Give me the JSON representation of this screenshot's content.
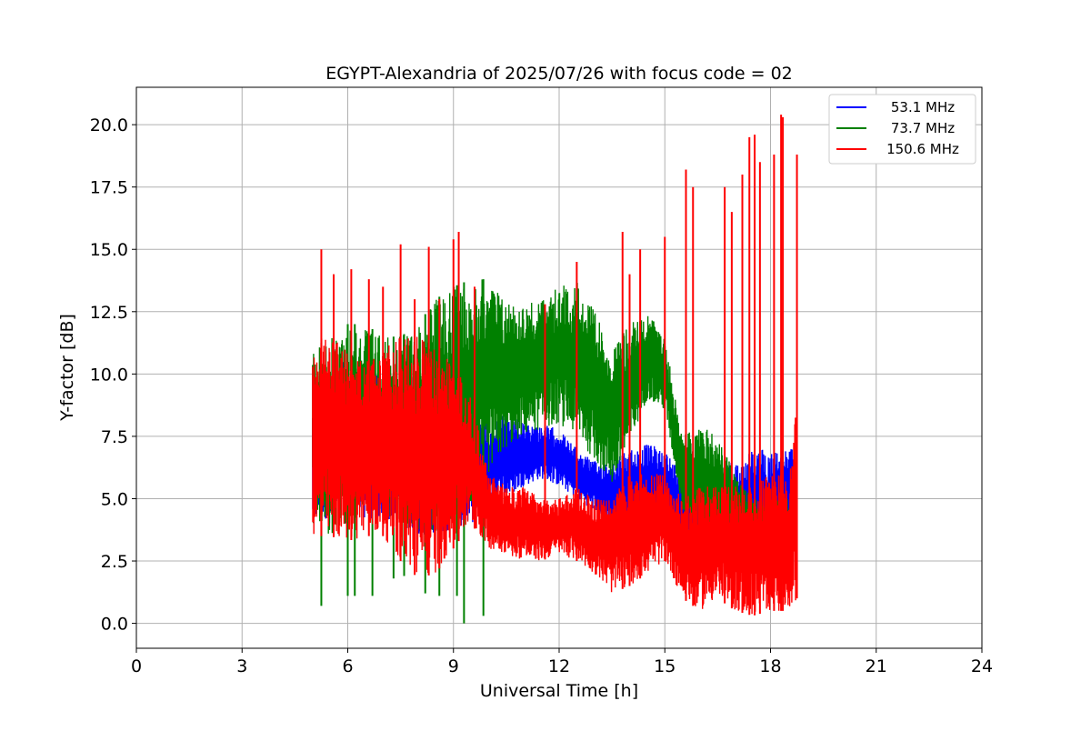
{
  "chart_data": {
    "type": "line",
    "title": "EGYPT-Alexandria of 2025/07/26 with focus code = 02",
    "xlabel": "Universal Time [h]",
    "ylabel": "Y-factor [dB]",
    "xlim": [
      0,
      24
    ],
    "ylim": [
      -1.0,
      21.5
    ],
    "x_ticks": [
      0,
      3,
      6,
      9,
      12,
      15,
      18,
      21,
      24
    ],
    "x_tick_labels": [
      "0",
      "3",
      "6",
      "9",
      "12",
      "15",
      "18",
      "21",
      "24"
    ],
    "y_ticks": [
      0,
      2.5,
      5,
      7.5,
      10,
      12.5,
      15,
      17.5,
      20
    ],
    "y_tick_labels": [
      "0.0",
      "2.5",
      "5.0",
      "7.5",
      "10.0",
      "12.5",
      "15.0",
      "17.5",
      "20.0"
    ],
    "grid": true,
    "legend_position": "top-right",
    "series": [
      {
        "name": "53.1 MHz",
        "color": "#0000ff",
        "x": [
          5.0,
          5.5,
          6.0,
          6.5,
          7.0,
          7.5,
          8.0,
          8.5,
          9.0,
          9.5,
          10.0,
          10.5,
          11.0,
          11.5,
          12.0,
          12.5,
          13.0,
          13.5,
          14.0,
          14.5,
          15.0,
          15.5,
          16.0,
          16.5,
          17.0,
          17.5,
          18.0,
          18.5,
          18.75
        ],
        "low": [
          4.0,
          4.0,
          4.0,
          4.2,
          4.0,
          3.8,
          3.5,
          3.5,
          3.8,
          4.0,
          4.5,
          5.0,
          5.5,
          5.8,
          5.5,
          5.0,
          4.5,
          4.0,
          3.8,
          4.2,
          4.0,
          3.0,
          2.8,
          2.5,
          2.5,
          2.8,
          3.0,
          3.0,
          3.0
        ],
        "high": [
          9.5,
          10.5,
          10.5,
          10.0,
          10.0,
          10.0,
          10.0,
          9.5,
          8.5,
          8.0,
          8.3,
          8.5,
          8.0,
          8.0,
          7.8,
          7.0,
          6.5,
          6.5,
          7.0,
          7.2,
          7.0,
          6.0,
          6.0,
          6.5,
          6.5,
          7.0,
          7.0,
          7.0,
          7.0
        ]
      },
      {
        "name": "73.7 MHz",
        "color": "#008000",
        "x": [
          5.0,
          5.5,
          6.0,
          6.5,
          7.0,
          7.5,
          8.0,
          8.5,
          9.0,
          9.5,
          10.0,
          10.5,
          11.0,
          11.5,
          12.0,
          12.5,
          13.0,
          13.5,
          14.0,
          14.5,
          15.0,
          15.5,
          16.0,
          16.5,
          17.0,
          17.5,
          18.0,
          18.5,
          18.75
        ],
        "low": [
          4.0,
          3.5,
          4.0,
          4.5,
          4.5,
          4.0,
          3.5,
          3.5,
          4.0,
          4.5,
          6.0,
          7.0,
          7.5,
          7.8,
          8.0,
          7.5,
          6.5,
          5.5,
          7.0,
          9.0,
          8.5,
          4.5,
          3.5,
          3.5,
          3.5,
          3.0,
          3.0,
          3.0,
          3.0
        ],
        "high": [
          11.0,
          11.5,
          12.0,
          12.0,
          11.5,
          11.5,
          12.0,
          13.0,
          13.5,
          13.8,
          13.8,
          13.0,
          12.8,
          13.0,
          13.5,
          13.8,
          12.5,
          11.0,
          12.0,
          12.5,
          11.5,
          7.5,
          8.0,
          7.5,
          6.0,
          5.0,
          5.0,
          5.0,
          5.0
        ],
        "spikes_down": [
          [
            5.25,
            0.7
          ],
          [
            6.0,
            1.1
          ],
          [
            6.2,
            1.1
          ],
          [
            6.7,
            1.1
          ],
          [
            7.3,
            1.8
          ],
          [
            7.6,
            1.9
          ],
          [
            8.2,
            1.2
          ],
          [
            8.6,
            1.1
          ],
          [
            9.1,
            1.1
          ],
          [
            9.3,
            0.0
          ],
          [
            9.85,
            0.3
          ]
        ]
      },
      {
        "name": "150.6 MHz",
        "color": "#ff0000",
        "x": [
          5.0,
          5.5,
          6.0,
          6.5,
          7.0,
          7.5,
          8.0,
          8.5,
          9.0,
          9.5,
          10.0,
          10.5,
          11.0,
          11.5,
          12.0,
          12.5,
          13.0,
          13.5,
          14.0,
          14.5,
          15.0,
          15.5,
          16.0,
          16.5,
          17.0,
          17.5,
          18.0,
          18.5,
          18.75
        ],
        "low": [
          3.5,
          3.5,
          3.3,
          3.5,
          3.5,
          2.5,
          1.8,
          2.0,
          3.0,
          4.0,
          3.0,
          2.8,
          2.5,
          2.5,
          2.8,
          2.5,
          2.0,
          1.2,
          1.5,
          2.0,
          2.5,
          1.0,
          0.5,
          1.0,
          0.5,
          0.3,
          0.5,
          0.5,
          1.0
        ],
        "high": [
          11.5,
          11.5,
          11.0,
          10.5,
          11.0,
          11.5,
          11.5,
          11.0,
          10.5,
          9.0,
          6.0,
          5.5,
          5.5,
          5.0,
          5.0,
          5.5,
          5.0,
          5.0,
          6.0,
          6.0,
          6.0,
          5.0,
          5.5,
          5.5,
          5.5,
          5.5,
          6.0,
          6.0,
          9.0
        ],
        "spikes_up": [
          [
            5.25,
            15.0
          ],
          [
            5.6,
            14.0
          ],
          [
            6.1,
            14.2
          ],
          [
            6.6,
            13.8
          ],
          [
            7.0,
            13.5
          ],
          [
            7.5,
            15.2
          ],
          [
            7.9,
            13.0
          ],
          [
            8.3,
            15.1
          ],
          [
            8.6,
            13.0
          ],
          [
            9.0,
            15.4
          ],
          [
            9.15,
            15.7
          ],
          [
            9.6,
            13.5
          ],
          [
            11.6,
            12.8
          ],
          [
            12.5,
            14.5
          ],
          [
            13.8,
            15.7
          ],
          [
            14.0,
            14.0
          ],
          [
            14.3,
            15.0
          ],
          [
            15.0,
            15.5
          ],
          [
            15.6,
            18.2
          ],
          [
            15.8,
            17.5
          ],
          [
            16.7,
            17.5
          ],
          [
            16.9,
            16.5
          ],
          [
            17.2,
            18.0
          ],
          [
            17.4,
            19.5
          ],
          [
            17.55,
            19.6
          ],
          [
            17.7,
            18.5
          ],
          [
            18.1,
            18.8
          ],
          [
            18.3,
            20.4
          ],
          [
            18.35,
            20.3
          ],
          [
            18.75,
            18.8
          ]
        ]
      }
    ]
  }
}
